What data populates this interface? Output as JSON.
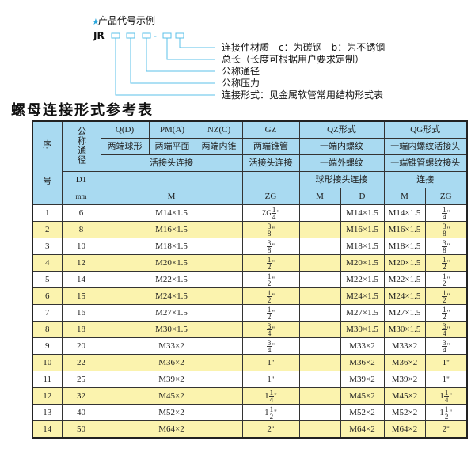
{
  "code_example": {
    "heading": "产品代号示例",
    "star_icon": "star-icon",
    "prefix": "JR",
    "separator": "-",
    "line_color": "#5bc0e8",
    "labels": [
      "连接件材质　c：为碳钢　b：为不锈钢",
      "总长（长度可根据用户要求定制）",
      "公称通径",
      "公称压力",
      "连接形式：见金属软管常用结构形式表"
    ]
  },
  "table_title": "螺母连接形式参考表",
  "header": {
    "seq": "序",
    "seq2": "号",
    "dn": "公称通径",
    "qd": "Q(D)",
    "pma": "PM(A)",
    "nzc": "NZ(C)",
    "gz": "GZ",
    "qz": "QZ形式",
    "qg": "QG形式",
    "qd_desc": "两端球形",
    "pma_desc": "两端平面",
    "nzc_desc": "两端内锥",
    "gz_desc": "两端锥管",
    "qz_desc": "一端内螺纹",
    "qg_desc": "一端内螺纹活接头",
    "union": "活接头连接",
    "gz_union": "活接头连接",
    "qz_desc2": "一端外螺纹",
    "qg_desc2": "一端锥管螺纹接头",
    "d1": "D1",
    "qz_desc3": "球形接头连接",
    "qg_desc3": "连接",
    "mm": "mm",
    "m": "M",
    "zg": "ZG",
    "qz_m": "M",
    "qz_d": "D",
    "qg_m": "M",
    "qg_zg": "ZG"
  },
  "colors": {
    "header_bg": "#a9daf1",
    "stripe": "#fbf3ae"
  },
  "rows": [
    {
      "no": "1",
      "d1": "6",
      "m": "M14×1.5",
      "zg": {
        "pre": "ZG",
        "num": "1",
        "den": "4"
      },
      "qz_d": "M14×1.5",
      "qg_m": "M14×1.5",
      "qg_zg": {
        "num": "1",
        "den": "4"
      }
    },
    {
      "no": "2",
      "d1": "8",
      "m": "M16×1.5",
      "zg": {
        "num": "3",
        "den": "8"
      },
      "qz_d": "M16×1.5",
      "qg_m": "M16×1.5",
      "qg_zg": {
        "num": "3",
        "den": "8"
      }
    },
    {
      "no": "3",
      "d1": "10",
      "m": "M18×1.5",
      "zg": {
        "num": "3",
        "den": "8"
      },
      "qz_d": "M18×1.5",
      "qg_m": "M18×1.5",
      "qg_zg": {
        "num": "3",
        "den": "8"
      }
    },
    {
      "no": "4",
      "d1": "12",
      "m": "M20×1.5",
      "zg": {
        "num": "1",
        "den": "2"
      },
      "qz_d": "M20×1.5",
      "qg_m": "M20×1.5",
      "qg_zg": {
        "num": "1",
        "den": "2"
      }
    },
    {
      "no": "5",
      "d1": "14",
      "m": "M22×1.5",
      "zg": {
        "num": "1",
        "den": "2"
      },
      "qz_d": "M22×1.5",
      "qg_m": "M22×1.5",
      "qg_zg": {
        "num": "1",
        "den": "2"
      }
    },
    {
      "no": "6",
      "d1": "15",
      "m": "M24×1.5",
      "zg": {
        "num": "1",
        "den": "2"
      },
      "qz_d": "M24×1.5",
      "qg_m": "M24×1.5",
      "qg_zg": {
        "num": "1",
        "den": "2"
      }
    },
    {
      "no": "7",
      "d1": "16",
      "m": "M27×1.5",
      "zg": {
        "num": "1",
        "den": "2"
      },
      "qz_d": "M27×1.5",
      "qg_m": "M27×1.5",
      "qg_zg": {
        "num": "1",
        "den": "2"
      }
    },
    {
      "no": "8",
      "d1": "18",
      "m": "M30×1.5",
      "zg": {
        "num": "3",
        "den": "4"
      },
      "qz_d": "M30×1.5",
      "qg_m": "M30×1.5",
      "qg_zg": {
        "num": "3",
        "den": "4"
      }
    },
    {
      "no": "9",
      "d1": "20",
      "m": "M33×2",
      "zg": {
        "num": "3",
        "den": "4"
      },
      "qz_d": "M33×2",
      "qg_m": "M33×2",
      "qg_zg": {
        "num": "3",
        "den": "4"
      }
    },
    {
      "no": "10",
      "d1": "22",
      "m": "M36×2",
      "zg": {
        "whole": "1"
      },
      "qz_d": "M36×2",
      "qg_m": "M36×2",
      "qg_zg": {
        "whole": "1"
      }
    },
    {
      "no": "11",
      "d1": "25",
      "m": "M39×2",
      "zg": {
        "whole": "1"
      },
      "qz_d": "M39×2",
      "qg_m": "M39×2",
      "qg_zg": {
        "whole": "1"
      }
    },
    {
      "no": "12",
      "d1": "32",
      "m": "M45×2",
      "zg": {
        "whole": "1",
        "num": "1",
        "den": "4"
      },
      "qz_d": "M45×2",
      "qg_m": "M45×2",
      "qg_zg": {
        "whole": "1",
        "num": "1",
        "den": "4"
      }
    },
    {
      "no": "13",
      "d1": "40",
      "m": "M52×2",
      "zg": {
        "whole": "1",
        "num": "1",
        "den": "2"
      },
      "qz_d": "M52×2",
      "qg_m": "M52×2",
      "qg_zg": {
        "whole": "1",
        "num": "1",
        "den": "2"
      }
    },
    {
      "no": "14",
      "d1": "50",
      "m": "M64×2",
      "zg": {
        "whole": "2"
      },
      "qz_d": "M64×2",
      "qg_m": "M64×2",
      "qg_zg": {
        "whole": "2"
      }
    }
  ]
}
